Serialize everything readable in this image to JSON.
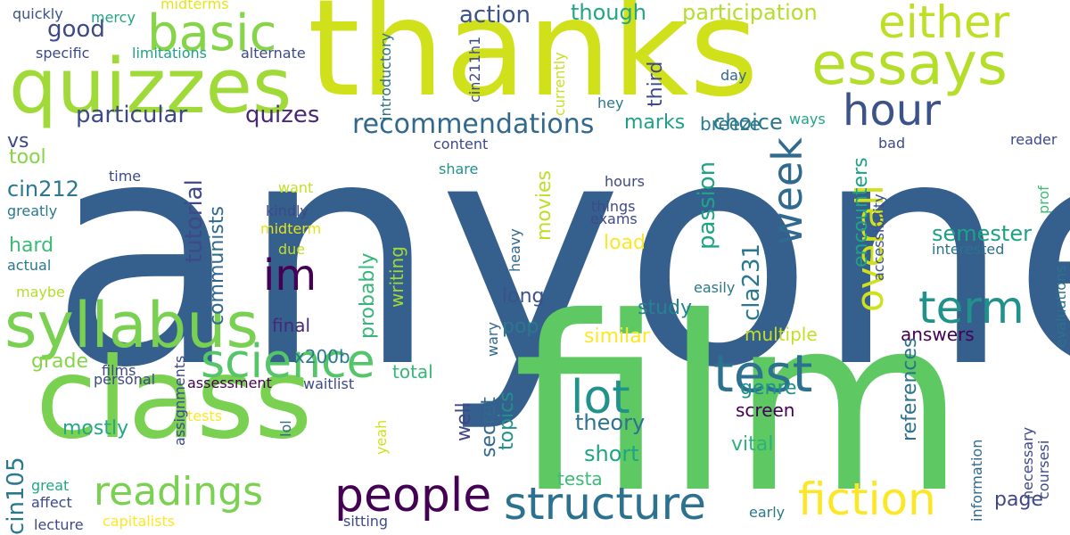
{
  "words": [
    {
      "text": "anyone",
      "color": "#355f8d",
      "rotated": false
    },
    {
      "text": "thanks",
      "color": "#d0e11c",
      "rotated": false
    },
    {
      "text": "film",
      "color": "#5ec962",
      "rotated": false
    },
    {
      "text": "class",
      "color": "#7ad151",
      "rotated": false
    },
    {
      "text": "quizzes",
      "color": "#a0da39",
      "rotated": false
    },
    {
      "text": "essays",
      "color": "#b5de2b",
      "rotated": false
    },
    {
      "text": "either",
      "color": "#bddf26",
      "rotated": false
    },
    {
      "text": "basic",
      "color": "#86d549",
      "rotated": false
    },
    {
      "text": "hour",
      "color": "#3b528b",
      "rotated": false
    },
    {
      "text": "syllabus",
      "color": "#7ad151",
      "rotated": false
    },
    {
      "text": "im",
      "color": "#440154",
      "rotated": false
    },
    {
      "text": "science",
      "color": "#54c568",
      "rotated": false
    },
    {
      "text": "test",
      "color": "#2c728e",
      "rotated": false
    },
    {
      "text": "lot",
      "color": "#21918c",
      "rotated": false
    },
    {
      "text": "term",
      "color": "#21918c",
      "rotated": false
    },
    {
      "text": "people",
      "color": "#440154",
      "rotated": false
    },
    {
      "text": "readings",
      "color": "#7ad151",
      "rotated": false
    },
    {
      "text": "structure",
      "color": "#2c728e",
      "rotated": false
    },
    {
      "text": "fiction",
      "color": "#fde725",
      "rotated": false
    },
    {
      "text": "overall",
      "color": "#d0e11c",
      "rotated": true
    },
    {
      "text": "week",
      "color": "#306a8e",
      "rotated": true
    },
    {
      "text": "recommendations",
      "color": "#31688e",
      "rotated": false
    },
    {
      "text": "particular",
      "color": "#3e4989",
      "rotated": false
    },
    {
      "text": "quizes",
      "color": "#482878",
      "rotated": false
    },
    {
      "text": "action",
      "color": "#3b528b",
      "rotated": false
    },
    {
      "text": "though",
      "color": "#21a685",
      "rotated": false
    },
    {
      "text": "participation",
      "color": "#b5de2b",
      "rotated": false
    },
    {
      "text": "good",
      "color": "#3e4989",
      "rotated": false
    },
    {
      "text": "choice",
      "color": "#2a788e",
      "rotated": false
    },
    {
      "text": "vs",
      "color": "#3e4989",
      "rotated": false
    },
    {
      "text": "tool",
      "color": "#86d549",
      "rotated": false
    },
    {
      "text": "cin212",
      "color": "#2a788e",
      "rotated": false
    },
    {
      "text": "hard",
      "color": "#3bbb75",
      "rotated": false
    },
    {
      "text": "grade",
      "color": "#86d549",
      "rotated": false
    },
    {
      "text": "mostly",
      "color": "#22a884",
      "rotated": false
    },
    {
      "text": "cin105",
      "color": "#2a788e",
      "rotated": true
    },
    {
      "text": "semester",
      "color": "#1fa187",
      "rotated": false
    },
    {
      "text": "answers",
      "color": "#440154",
      "rotated": false
    },
    {
      "text": "multiple",
      "color": "#c2df23",
      "rotated": false
    },
    {
      "text": "similar",
      "color": "#fde725",
      "rotated": false
    },
    {
      "text": "pop",
      "color": "#2a788e",
      "rotated": false
    },
    {
      "text": "study",
      "color": "#26828e",
      "rotated": false
    },
    {
      "text": "long",
      "color": "#3b528b",
      "rotated": false
    },
    {
      "text": "load",
      "color": "#fde725",
      "rotated": false
    },
    {
      "text": "final",
      "color": "#482878",
      "rotated": false
    },
    {
      "text": "x200b",
      "color": "#2a788e",
      "rotated": false
    },
    {
      "text": "total",
      "color": "#35b779",
      "rotated": false
    },
    {
      "text": "theory",
      "color": "#2c728e",
      "rotated": false
    },
    {
      "text": "short",
      "color": "#20a486",
      "rotated": false
    },
    {
      "text": "vital",
      "color": "#2db27d",
      "rotated": false
    },
    {
      "text": "genre",
      "color": "#21918c",
      "rotated": false
    },
    {
      "text": "screen",
      "color": "#440154",
      "rotated": false
    },
    {
      "text": "breeze",
      "color": "#2a788e",
      "rotated": false
    },
    {
      "text": "marks",
      "color": "#1fa187",
      "rotated": false
    },
    {
      "text": "page",
      "color": "#404688",
      "rotated": false
    },
    {
      "text": "testa",
      "color": "#3bbb75",
      "rotated": false
    },
    {
      "text": "tutorial",
      "color": "#3e4989",
      "rotated": true
    },
    {
      "text": "communists",
      "color": "#31688e",
      "rotated": true
    },
    {
      "text": "probably",
      "color": "#35b779",
      "rotated": true
    },
    {
      "text": "writing",
      "color": "#a0da39",
      "rotated": true
    },
    {
      "text": "well",
      "color": "#404688",
      "rotated": true
    },
    {
      "text": "secret",
      "color": "#31688e",
      "rotated": true
    },
    {
      "text": "topics",
      "color": "#21918c",
      "rotated": true
    },
    {
      "text": "movies",
      "color": "#bddf26",
      "rotated": true
    },
    {
      "text": "third",
      "color": "#3e4989",
      "rotated": true
    },
    {
      "text": "passion",
      "color": "#20a486",
      "rotated": true
    },
    {
      "text": "cla231",
      "color": "#2a788e",
      "rotated": true
    },
    {
      "text": "encounters",
      "color": "#1fa187",
      "rotated": true
    },
    {
      "text": "references",
      "color": "#2c728e",
      "rotated": true
    },
    {
      "text": "introductory",
      "color": "#2c728e",
      "rotated": true
    },
    {
      "text": "cin211h1",
      "color": "#3e4989",
      "rotated": true
    },
    {
      "text": "currently",
      "color": "#c8e020",
      "rotated": true
    },
    {
      "text": "accessibility",
      "color": "#3b528b",
      "rotated": true
    },
    {
      "text": "prof",
      "color": "#3bbb75",
      "rotated": true
    },
    {
      "text": "evaluations",
      "color": "#2c728e",
      "rotated": true
    },
    {
      "text": "necessary",
      "color": "#3e4989",
      "rotated": true
    },
    {
      "text": "coursesi",
      "color": "#3e4989",
      "rotated": true
    },
    {
      "text": "information",
      "color": "#31688e",
      "rotated": true
    },
    {
      "text": "heavy",
      "color": "#31688e",
      "rotated": true
    },
    {
      "text": "assignments",
      "color": "#3e4989",
      "rotated": true
    },
    {
      "text": "lol",
      "color": "#31688e",
      "rotated": true
    },
    {
      "text": "yeah",
      "color": "#d0e11c",
      "rotated": true
    },
    {
      "text": "wary",
      "color": "#31688e",
      "rotated": true
    },
    {
      "text": "quickly",
      "color": "#3b528b",
      "rotated": false
    },
    {
      "text": "mercy",
      "color": "#21a685",
      "rotated": false
    },
    {
      "text": "midterms",
      "color": "#e5e419",
      "rotated": false
    },
    {
      "text": "specific",
      "color": "#3e4989",
      "rotated": false
    },
    {
      "text": "limitations",
      "color": "#1fa187",
      "rotated": false
    },
    {
      "text": "alternate",
      "color": "#3e4989",
      "rotated": false
    },
    {
      "text": "day",
      "color": "#31688e",
      "rotated": false
    },
    {
      "text": "hey",
      "color": "#2a788e",
      "rotated": false
    },
    {
      "text": "ways",
      "color": "#20a486",
      "rotated": false
    },
    {
      "text": "content",
      "color": "#3e4989",
      "rotated": false
    },
    {
      "text": "reader",
      "color": "#3e4989",
      "rotated": false
    },
    {
      "text": "share",
      "color": "#21918c",
      "rotated": false
    },
    {
      "text": "bad",
      "color": "#3e4989",
      "rotated": false
    },
    {
      "text": "time",
      "color": "#3e4989",
      "rotated": false
    },
    {
      "text": "want",
      "color": "#c2df23",
      "rotated": false
    },
    {
      "text": "greatly",
      "color": "#2a788e",
      "rotated": false
    },
    {
      "text": "hours",
      "color": "#3e4989",
      "rotated": false
    },
    {
      "text": "things",
      "color": "#3e4989",
      "rotated": false
    },
    {
      "text": "exams",
      "color": "#3e4989",
      "rotated": false
    },
    {
      "text": "kindly",
      "color": "#3e4989",
      "rotated": false
    },
    {
      "text": "midterm",
      "color": "#e5e419",
      "rotated": false
    },
    {
      "text": "due",
      "color": "#c2df23",
      "rotated": false
    },
    {
      "text": "actual",
      "color": "#2a788e",
      "rotated": false
    },
    {
      "text": "interested",
      "color": "#2c728e",
      "rotated": false
    },
    {
      "text": "maybe",
      "color": "#b5de2b",
      "rotated": false
    },
    {
      "text": "easily",
      "color": "#2a788e",
      "rotated": false
    },
    {
      "text": "films",
      "color": "#3e4989",
      "rotated": false
    },
    {
      "text": "personal",
      "color": "#3e4989",
      "rotated": false
    },
    {
      "text": "assessment",
      "color": "#440154",
      "rotated": false
    },
    {
      "text": "waitlist",
      "color": "#3e4989",
      "rotated": false
    },
    {
      "text": "tests",
      "color": "#fde725",
      "rotated": false
    },
    {
      "text": "great",
      "color": "#22a884",
      "rotated": false
    },
    {
      "text": "affect",
      "color": "#3e4989",
      "rotated": false
    },
    {
      "text": "lecture",
      "color": "#3e4989",
      "rotated": false
    },
    {
      "text": "capitalists",
      "color": "#fde725",
      "rotated": false
    },
    {
      "text": "sitting",
      "color": "#3e4989",
      "rotated": false
    },
    {
      "text": "early",
      "color": "#2a788e",
      "rotated": false
    }
  ]
}
